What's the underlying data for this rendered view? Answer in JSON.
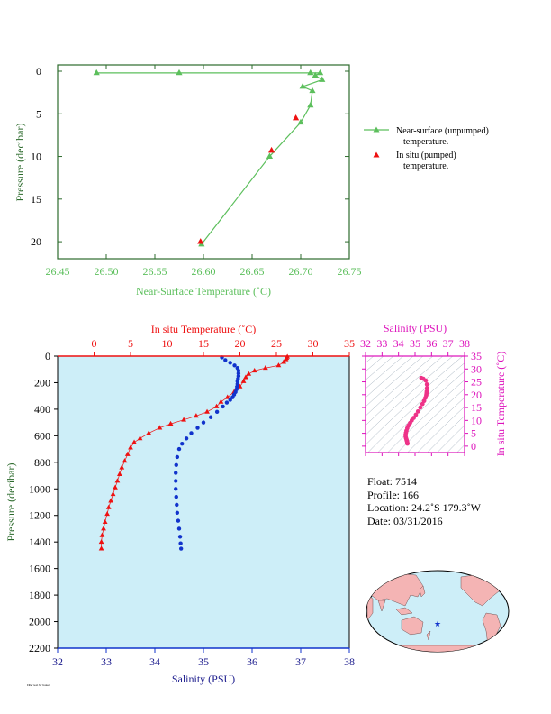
{
  "chart_data": [
    {
      "id": "near_surface",
      "type": "line",
      "xlabel": "Near-Surface Temperature (˚C)",
      "ylabel": "Pressure (decibar)",
      "xlim": [
        26.45,
        26.75
      ],
      "ylim": [
        0,
        22
      ],
      "y_inverted": true,
      "x_ticks": [
        "26.45",
        "26.50",
        "26.55",
        "26.60",
        "26.65",
        "26.70",
        "26.75"
      ],
      "y_ticks": [
        "0",
        "5",
        "10",
        "15",
        "20"
      ],
      "series": [
        {
          "name": "Near-surface (unpumped) temperature.",
          "color": "#5cbf5c",
          "marker": "triangle",
          "points": [
            {
              "x": 26.49,
              "y": 0.2
            },
            {
              "x": 26.575,
              "y": 0.2
            },
            {
              "x": 26.71,
              "y": 0.2
            },
            {
              "x": 26.72,
              "y": 0.2
            },
            {
              "x": 26.715,
              "y": 0.5
            },
            {
              "x": 26.722,
              "y": 1.0
            },
            {
              "x": 26.702,
              "y": 1.8
            },
            {
              "x": 26.712,
              "y": 2.3
            },
            {
              "x": 26.71,
              "y": 4.0
            },
            {
              "x": 26.7,
              "y": 6.0
            },
            {
              "x": 26.668,
              "y": 10.0
            },
            {
              "x": 26.598,
              "y": 20.3
            }
          ]
        },
        {
          "name": "In situ (pumped) temperature.",
          "color": "#ee1111",
          "marker": "triangle",
          "points": [
            {
              "x": 26.695,
              "y": 5.5
            },
            {
              "x": 26.67,
              "y": 9.3
            },
            {
              "x": 26.597,
              "y": 20.0
            }
          ]
        }
      ],
      "legend": [
        {
          "line1": "Near-surface (unpumped)",
          "line2": "temperature."
        },
        {
          "line1": "In situ (pumped)",
          "line2": "temperature."
        }
      ]
    },
    {
      "id": "profile",
      "type": "scatter",
      "title": "In situ Temperature (˚C)",
      "xlabel": "Salinity (PSU)",
      "ylabel": "Pressure (decibar)",
      "temp_lim": [
        -5,
        35
      ],
      "sal_lim": [
        32,
        38
      ],
      "ylim": [
        0,
        2200
      ],
      "y_inverted": true,
      "temp_ticks": [
        "0",
        "5",
        "10",
        "15",
        "20",
        "25",
        "30",
        "35"
      ],
      "sal_ticks": [
        "32",
        "33",
        "34",
        "35",
        "36",
        "37",
        "38"
      ],
      "pressure_ticks": [
        "0",
        "200",
        "400",
        "600",
        "800",
        "1000",
        "1200",
        "1400",
        "1600",
        "1800",
        "2000",
        "2200"
      ],
      "temperature": [
        [
          26.5,
          5
        ],
        [
          26.4,
          15
        ],
        [
          26.3,
          25
        ],
        [
          26.0,
          45
        ],
        [
          25.3,
          70
        ],
        [
          23.5,
          90
        ],
        [
          22.0,
          110
        ],
        [
          21.2,
          135
        ],
        [
          20.8,
          160
        ],
        [
          20.5,
          190
        ],
        [
          20.0,
          230
        ],
        [
          19.2,
          270
        ],
        [
          18.3,
          310
        ],
        [
          17.4,
          345
        ],
        [
          16.8,
          380
        ],
        [
          15.5,
          420
        ],
        [
          14.0,
          450
        ],
        [
          12.3,
          480
        ],
        [
          10.5,
          510
        ],
        [
          9.0,
          540
        ],
        [
          7.5,
          580
        ],
        [
          6.3,
          620
        ],
        [
          5.5,
          650
        ],
        [
          5.0,
          690
        ],
        [
          4.6,
          740
        ],
        [
          4.2,
          790
        ],
        [
          3.8,
          840
        ],
        [
          3.5,
          890
        ],
        [
          3.2,
          940
        ],
        [
          2.9,
          990
        ],
        [
          2.6,
          1040
        ],
        [
          2.3,
          1090
        ],
        [
          2.0,
          1140
        ],
        [
          1.8,
          1190
        ],
        [
          1.5,
          1250
        ],
        [
          1.3,
          1300
        ],
        [
          1.1,
          1350
        ],
        [
          1.0,
          1400
        ],
        [
          1.0,
          1450
        ]
      ],
      "salinity": [
        [
          35.38,
          10
        ],
        [
          35.45,
          30
        ],
        [
          35.55,
          50
        ],
        [
          35.64,
          70
        ],
        [
          35.7,
          90
        ],
        [
          35.72,
          110
        ],
        [
          35.72,
          130
        ],
        [
          35.72,
          150
        ],
        [
          35.71,
          170
        ],
        [
          35.7,
          190
        ],
        [
          35.7,
          210
        ],
        [
          35.69,
          230
        ],
        [
          35.68,
          250
        ],
        [
          35.66,
          270
        ],
        [
          35.63,
          290
        ],
        [
          35.6,
          310
        ],
        [
          35.55,
          330
        ],
        [
          35.48,
          350
        ],
        [
          35.4,
          380
        ],
        [
          35.28,
          420
        ],
        [
          35.15,
          460
        ],
        [
          35.0,
          500
        ],
        [
          34.88,
          540
        ],
        [
          34.75,
          580
        ],
        [
          34.65,
          620
        ],
        [
          34.56,
          660
        ],
        [
          34.5,
          700
        ],
        [
          34.46,
          760
        ],
        [
          34.44,
          820
        ],
        [
          34.43,
          880
        ],
        [
          34.43,
          940
        ],
        [
          34.43,
          1000
        ],
        [
          34.44,
          1060
        ],
        [
          34.45,
          1120
        ],
        [
          34.46,
          1180
        ],
        [
          34.48,
          1240
        ],
        [
          34.5,
          1300
        ],
        [
          34.52,
          1360
        ],
        [
          34.53,
          1410
        ],
        [
          34.54,
          1450
        ]
      ]
    },
    {
      "id": "ts_diagram",
      "type": "scatter",
      "xlabel": "Salinity (PSU)",
      "ylabel": "In situ Temperature (˚C)",
      "xlim": [
        32,
        38
      ],
      "ylim": [
        -2.5,
        35
      ],
      "x_ticks": [
        "32",
        "33",
        "34",
        "35",
        "36",
        "37",
        "38"
      ],
      "y_ticks": [
        "0",
        "5",
        "10",
        "15",
        "20",
        "25",
        "30",
        "35"
      ],
      "points": [
        [
          35.38,
          26.5
        ],
        [
          35.5,
          26.2
        ],
        [
          35.65,
          25.5
        ],
        [
          35.72,
          24.0
        ],
        [
          35.72,
          22.5
        ],
        [
          35.71,
          21.3
        ],
        [
          35.7,
          20.6
        ],
        [
          35.68,
          19.8
        ],
        [
          35.63,
          18.8
        ],
        [
          35.55,
          17.6
        ],
        [
          35.45,
          16.4
        ],
        [
          35.32,
          15.0
        ],
        [
          35.18,
          13.5
        ],
        [
          35.05,
          12.2
        ],
        [
          34.92,
          11.0
        ],
        [
          34.8,
          10.0
        ],
        [
          34.7,
          9.0
        ],
        [
          34.6,
          8.0
        ],
        [
          34.53,
          7.0
        ],
        [
          34.48,
          6.0
        ],
        [
          34.45,
          5.2
        ],
        [
          34.43,
          4.5
        ],
        [
          34.43,
          3.8
        ],
        [
          34.45,
          3.2
        ],
        [
          34.48,
          2.6
        ],
        [
          34.5,
          2.1
        ],
        [
          34.52,
          1.7
        ],
        [
          34.53,
          1.3
        ],
        [
          34.54,
          1.0
        ]
      ]
    }
  ],
  "float_info": {
    "float": "Float:  7514",
    "profile": "Profile:  166",
    "location": "Location:  24.2˚S  179.3˚W",
    "date": "Date:  03/31/2016"
  },
  "colors": {
    "green": "#5cbf5c",
    "red": "#ee1111",
    "blue": "#1133cc",
    "magenta": "#dd11bb",
    "navy": "#1a1a8c",
    "dark_green": "#2d6b2d",
    "profile_bg": "#cdeef8",
    "map_land": "#f4b4b4",
    "map_ocean": "#cdeef8"
  },
  "footer": "Filler text for footer"
}
